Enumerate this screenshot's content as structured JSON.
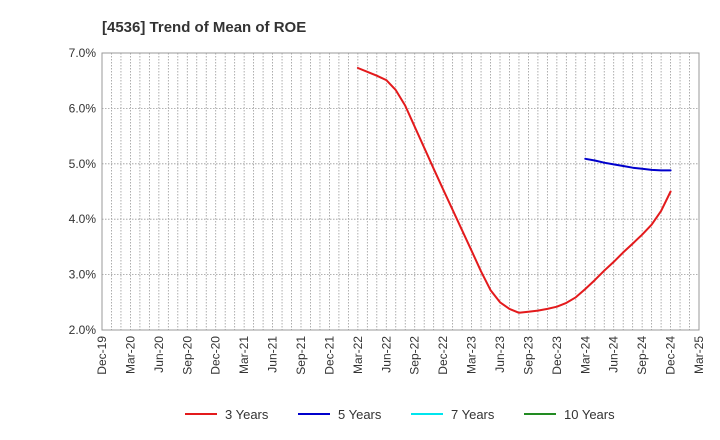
{
  "chart_data": {
    "type": "line",
    "title": "[4536]  Trend of Mean of ROE",
    "xlabel": "",
    "ylabel": "",
    "x_ticks": [
      "Dec-19",
      "Mar-20",
      "Jun-20",
      "Sep-20",
      "Dec-20",
      "Mar-21",
      "Jun-21",
      "Sep-21",
      "Dec-21",
      "Mar-22",
      "Jun-22",
      "Sep-22",
      "Dec-22",
      "Mar-23",
      "Jun-23",
      "Sep-23",
      "Dec-23",
      "Mar-24",
      "Jun-24",
      "Sep-24",
      "Dec-24",
      "Mar-25"
    ],
    "y_ticks": [
      "2.0%",
      "3.0%",
      "4.0%",
      "5.0%",
      "6.0%",
      "7.0%"
    ],
    "ylim": [
      2.0,
      7.0
    ],
    "grid": true,
    "legend_position": "bottom",
    "series": [
      {
        "name": "3 Years",
        "color": "#e31a1c",
        "x": [
          "Mar-22",
          "Apr-22",
          "May-22",
          "Jun-22",
          "Jul-22",
          "Aug-22",
          "Sep-22",
          "Oct-22",
          "Nov-22",
          "Dec-22",
          "Jan-23",
          "Feb-23",
          "Mar-23",
          "Apr-23",
          "May-23",
          "Jun-23",
          "Jul-23",
          "Aug-23",
          "Sep-23",
          "Oct-23",
          "Nov-23",
          "Dec-23",
          "Jan-24",
          "Feb-24",
          "Mar-24",
          "Apr-24",
          "May-24",
          "Jun-24",
          "Jul-24",
          "Aug-24",
          "Sep-24",
          "Oct-24",
          "Nov-24",
          "Dec-24"
        ],
        "values": [
          6.73,
          6.66,
          6.59,
          6.51,
          6.33,
          6.05,
          5.67,
          5.29,
          4.91,
          4.54,
          4.17,
          3.8,
          3.43,
          3.06,
          2.72,
          2.5,
          2.38,
          2.31,
          2.33,
          2.35,
          2.38,
          2.42,
          2.49,
          2.59,
          2.74,
          2.9,
          3.07,
          3.23,
          3.4,
          3.56,
          3.72,
          3.9,
          4.15,
          4.5
        ]
      },
      {
        "name": "5 Years",
        "color": "#0000cc",
        "x": [
          "Mar-24",
          "Apr-24",
          "May-24",
          "Jun-24",
          "Jul-24",
          "Aug-24",
          "Sep-24",
          "Oct-24",
          "Nov-24",
          "Dec-24"
        ],
        "values": [
          5.09,
          5.06,
          5.02,
          4.99,
          4.96,
          4.93,
          4.91,
          4.89,
          4.88,
          4.88
        ]
      },
      {
        "name": "7 Years",
        "color": "#00e5ee",
        "x": [],
        "values": []
      },
      {
        "name": "10 Years",
        "color": "#228b22",
        "x": [],
        "values": []
      }
    ]
  }
}
